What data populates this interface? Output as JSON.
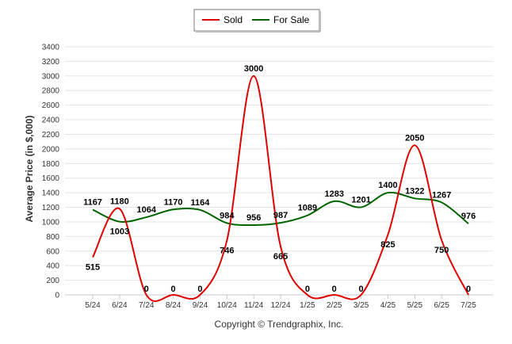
{
  "chart_data": {
    "type": "line",
    "categories": [
      "5/24",
      "6/24",
      "7/24",
      "8/24",
      "9/24",
      "10/24",
      "11/24",
      "12/24",
      "1/25",
      "2/25",
      "3/25",
      "4/25",
      "5/25",
      "6/25",
      "7/25"
    ],
    "series": [
      {
        "name": "Sold",
        "color": "#e00000",
        "values": [
          515,
          1180,
          0,
          0,
          0,
          746,
          3000,
          665,
          0,
          0,
          0,
          825,
          2050,
          750,
          0
        ]
      },
      {
        "name": "For Sale",
        "color": "#006400",
        "values": [
          1167,
          1003,
          1064,
          1170,
          1164,
          984,
          956,
          987,
          1089,
          1283,
          1201,
          1400,
          1322,
          1267,
          976
        ]
      }
    ],
    "ylabel": "Average Price (in $,000)",
    "xlabel": "",
    "ylim": [
      0,
      3400
    ],
    "yticks": [
      0,
      200,
      400,
      600,
      800,
      1000,
      1200,
      1400,
      1600,
      1800,
      2000,
      2200,
      2400,
      2600,
      2800,
      3000,
      3200,
      3400
    ],
    "grid": true,
    "legend_position": "top-center"
  },
  "credit": "Copyright © Trendgraphix, Inc."
}
